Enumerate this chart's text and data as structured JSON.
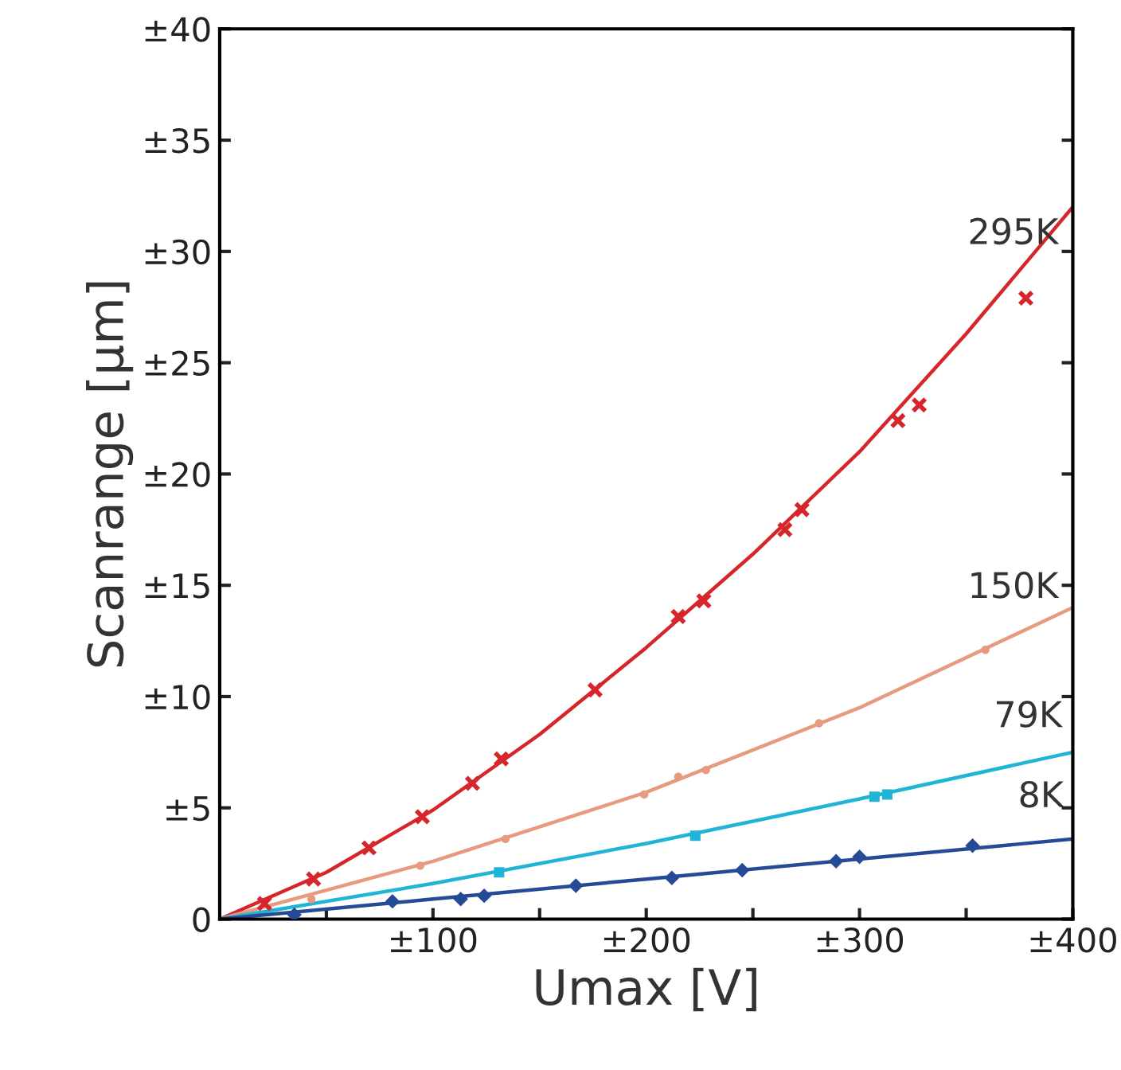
{
  "chart_data": {
    "type": "scatter",
    "xlabel": "Umax [V]",
    "ylabel": "Scanrange [µm]",
    "xlim": [
      0,
      400
    ],
    "ylim": [
      0,
      40
    ],
    "xticks": [
      {
        "value": 50,
        "label": null
      },
      {
        "value": 100,
        "label": "±100"
      },
      {
        "value": 150,
        "label": null
      },
      {
        "value": 200,
        "label": "±200"
      },
      {
        "value": 250,
        "label": null
      },
      {
        "value": 300,
        "label": "±300"
      },
      {
        "value": 350,
        "label": null
      },
      {
        "value": 400,
        "label": "±400"
      }
    ],
    "yticks": [
      0,
      {
        "value": 5,
        "label": "±5"
      },
      {
        "value": 10,
        "label": "±10"
      },
      {
        "value": 15,
        "label": "±15"
      },
      {
        "value": 20,
        "label": "±20"
      },
      {
        "value": 25,
        "label": "±25"
      },
      {
        "value": 30,
        "label": "±30"
      },
      {
        "value": 35,
        "label": "±35"
      },
      {
        "value": 40,
        "label": "±40"
      }
    ],
    "grid": false,
    "series": [
      {
        "type": "line",
        "color": "#d7262b",
        "x": [
          0,
          50,
          100,
          150,
          200,
          250,
          300,
          350,
          400
        ],
        "values": [
          0,
          2.1,
          4.9,
          8.3,
          12.2,
          16.4,
          21.0,
          26.3,
          32.0
        ],
        "marker": "none",
        "line_style": "solid"
      },
      {
        "color": "#d7262b",
        "marker": "cross",
        "x": [
          21,
          44,
          70,
          95,
          118.5,
          132,
          176,
          215,
          227,
          265,
          273,
          318,
          328,
          378
        ],
        "values": [
          0.7,
          1.8,
          3.2,
          4.6,
          6.1,
          7.2,
          10.3,
          13.6,
          14.3,
          17.5,
          18.4,
          22.4,
          23.1,
          27.9
        ]
      },
      {
        "type": "line",
        "color": "#e89a7e",
        "x": [
          0,
          100,
          200,
          300,
          400
        ],
        "values": [
          0,
          2.6,
          5.7,
          9.5,
          14.0
        ],
        "marker": "none",
        "line_style": "solid"
      },
      {
        "color": "#e89a7e",
        "marker": "circle",
        "x": [
          43,
          94,
          134,
          199,
          215,
          228,
          281,
          359
        ],
        "values": [
          0.9,
          2.4,
          3.6,
          5.6,
          6.4,
          6.7,
          8.8,
          12.1
        ]
      },
      {
        "type": "line",
        "color": "#20b4d6",
        "x": [
          0,
          100,
          200,
          300,
          400
        ],
        "values": [
          0,
          1.6,
          3.4,
          5.4,
          7.5
        ],
        "marker": "none",
        "line_style": "solid"
      },
      {
        "color": "#20b4d6",
        "marker": "square",
        "x": [
          131,
          223,
          307,
          313
        ],
        "values": [
          2.1,
          3.75,
          5.5,
          5.6
        ]
      },
      {
        "type": "line",
        "color": "#254a96",
        "x": [
          0,
          100,
          200,
          300,
          400
        ],
        "values": [
          0,
          0.9,
          1.8,
          2.7,
          3.6
        ],
        "marker": "none",
        "line_style": "solid"
      },
      {
        "color": "#254a96",
        "marker": "diamond",
        "x": [
          35,
          81,
          113,
          124,
          167,
          212,
          245,
          289,
          300,
          353
        ],
        "values": [
          0.2,
          0.8,
          0.9,
          1.05,
          1.5,
          1.85,
          2.2,
          2.6,
          2.8,
          3.3
        ]
      }
    ],
    "annotations": [
      {
        "text": "295K",
        "x": 372,
        "y": 28.8
      },
      {
        "text": "150K",
        "x": 372,
        "y": 12.9
      },
      {
        "text": "79K",
        "x": 379,
        "y": 7.1
      },
      {
        "text": "8K",
        "x": 385,
        "y": 3.5
      }
    ]
  }
}
